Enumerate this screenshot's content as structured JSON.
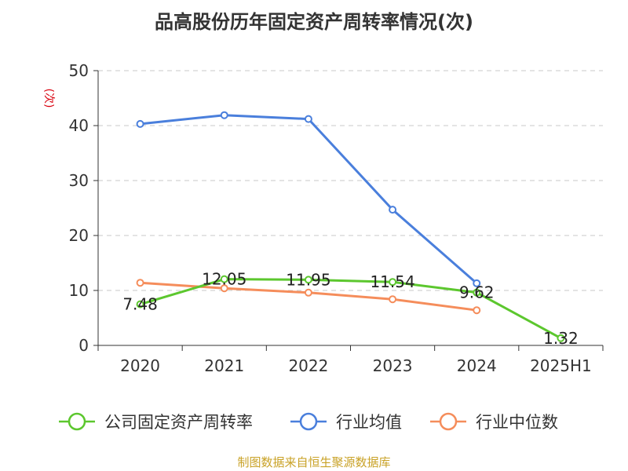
{
  "title": "品高股份历年固定资产周转率情况(次)",
  "source": "制图数据来自恒生聚源数据库",
  "chart_data": {
    "type": "line",
    "title": "品高股份历年固定资产周转率情况(次)",
    "ylabel": "(次)",
    "xlabel": "",
    "categories": [
      "2020",
      "2021",
      "2022",
      "2023",
      "2024",
      "2025H1"
    ],
    "ylim": [
      0,
      50
    ],
    "yticks": [
      0,
      10,
      20,
      30,
      40,
      50
    ],
    "grid": true,
    "legend_position": "bottom",
    "series": [
      {
        "name": "公司固定资产周转率",
        "color": "#5cc72e",
        "values": [
          7.48,
          12.05,
          11.95,
          11.54,
          9.62,
          1.32
        ],
        "labels": [
          "7.48",
          "12.05",
          "11.95",
          "11.54",
          "9.62",
          "1.32"
        ]
      },
      {
        "name": "行业均值",
        "color": "#4a7fdc",
        "values": [
          40.3,
          41.9,
          41.2,
          24.7,
          11.3,
          null
        ]
      },
      {
        "name": "行业中位数",
        "color": "#f58d5b",
        "values": [
          11.4,
          10.4,
          9.6,
          8.4,
          6.4,
          null
        ]
      }
    ]
  }
}
